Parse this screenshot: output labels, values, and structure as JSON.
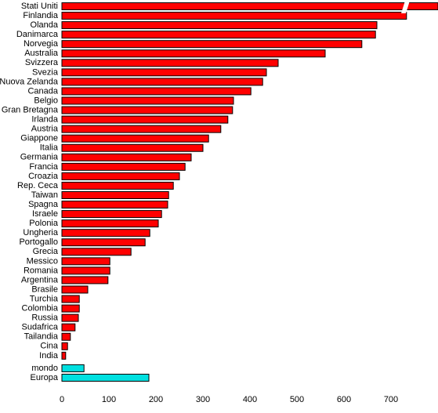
{
  "chart_data": {
    "type": "hbar",
    "categories": [
      "Stati Uniti",
      "Finlandia",
      "Olanda",
      "Danimarca",
      "Norvegia",
      "Australia",
      "Svizzera",
      "Svezia",
      "Nuova Zelanda",
      "Canada",
      "Belgio",
      "Gran Bretagna",
      "Irlanda",
      "Austria",
      "Giappone",
      "Italia",
      "Germania",
      "Francia",
      "Croazia",
      "Rep. Ceca",
      "Taiwan",
      "Spagna",
      "Israele",
      "Polonia",
      "Ungheria",
      "Portogallo",
      "Grecia",
      "Messico",
      "Romania",
      "Argentina",
      "Brasile",
      "Turchia",
      "Colombia",
      "Russia",
      "Sudafrica",
      "Tailandia",
      "Cina",
      "India",
      "mondo",
      "Europa"
    ],
    "values": [
      800,
      733,
      670,
      667,
      638,
      560,
      460,
      435,
      427,
      402,
      365,
      363,
      353,
      338,
      312,
      300,
      275,
      262,
      250,
      237,
      227,
      225,
      212,
      205,
      187,
      177,
      147,
      102,
      102,
      98,
      55,
      37,
      37,
      35,
      28,
      18,
      12,
      8,
      47,
      185
    ],
    "colors": [
      "#ff0000",
      "#ff0000",
      "#ff0000",
      "#ff0000",
      "#ff0000",
      "#ff0000",
      "#ff0000",
      "#ff0000",
      "#ff0000",
      "#ff0000",
      "#ff0000",
      "#ff0000",
      "#ff0000",
      "#ff0000",
      "#ff0000",
      "#ff0000",
      "#ff0000",
      "#ff0000",
      "#ff0000",
      "#ff0000",
      "#ff0000",
      "#ff0000",
      "#ff0000",
      "#ff0000",
      "#ff0000",
      "#ff0000",
      "#ff0000",
      "#ff0000",
      "#ff0000",
      "#ff0000",
      "#ff0000",
      "#ff0000",
      "#ff0000",
      "#ff0000",
      "#ff0000",
      "#ff0000",
      "#ff0000",
      "#ff0000",
      "#00e0e0",
      "#00e0e0"
    ],
    "xlim": [
      0,
      800
    ],
    "xticks": [
      0,
      100,
      200,
      300,
      400,
      500,
      600,
      700
    ]
  }
}
